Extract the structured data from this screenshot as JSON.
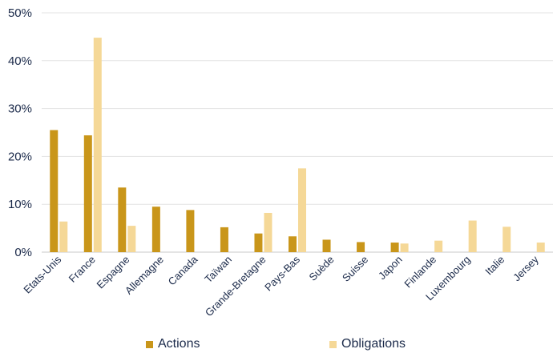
{
  "chart_data": {
    "type": "bar",
    "categories": [
      "Etats-Unis",
      "France",
      "Espagne",
      "Allemagne",
      "Canada",
      "Taïwan",
      "Grande-Bretagne",
      "Pays-Bas",
      "Suède",
      "Suisse",
      "Japon",
      "Finlande",
      "Luxembourg",
      "Italie",
      "Jersey"
    ],
    "series": [
      {
        "name": "Actions",
        "color": "#c9961a",
        "values": [
          25.5,
          24.4,
          13.5,
          9.5,
          8.8,
          5.2,
          3.9,
          3.3,
          2.6,
          2.1,
          2.0,
          0,
          0,
          0,
          0
        ]
      },
      {
        "name": "Obligations",
        "color": "#f5d897",
        "values": [
          6.4,
          44.8,
          5.5,
          0,
          0,
          0,
          8.2,
          17.5,
          0,
          0,
          1.8,
          2.4,
          6.6,
          5.3,
          2.0
        ]
      }
    ],
    "y_ticks": [
      "0%",
      "10%",
      "20%",
      "30%",
      "40%",
      "50%"
    ],
    "ylim": [
      0,
      50
    ],
    "grid": true,
    "legend_position": "bottom"
  },
  "legend": {
    "actions": "Actions",
    "obligations": "Obligations"
  }
}
